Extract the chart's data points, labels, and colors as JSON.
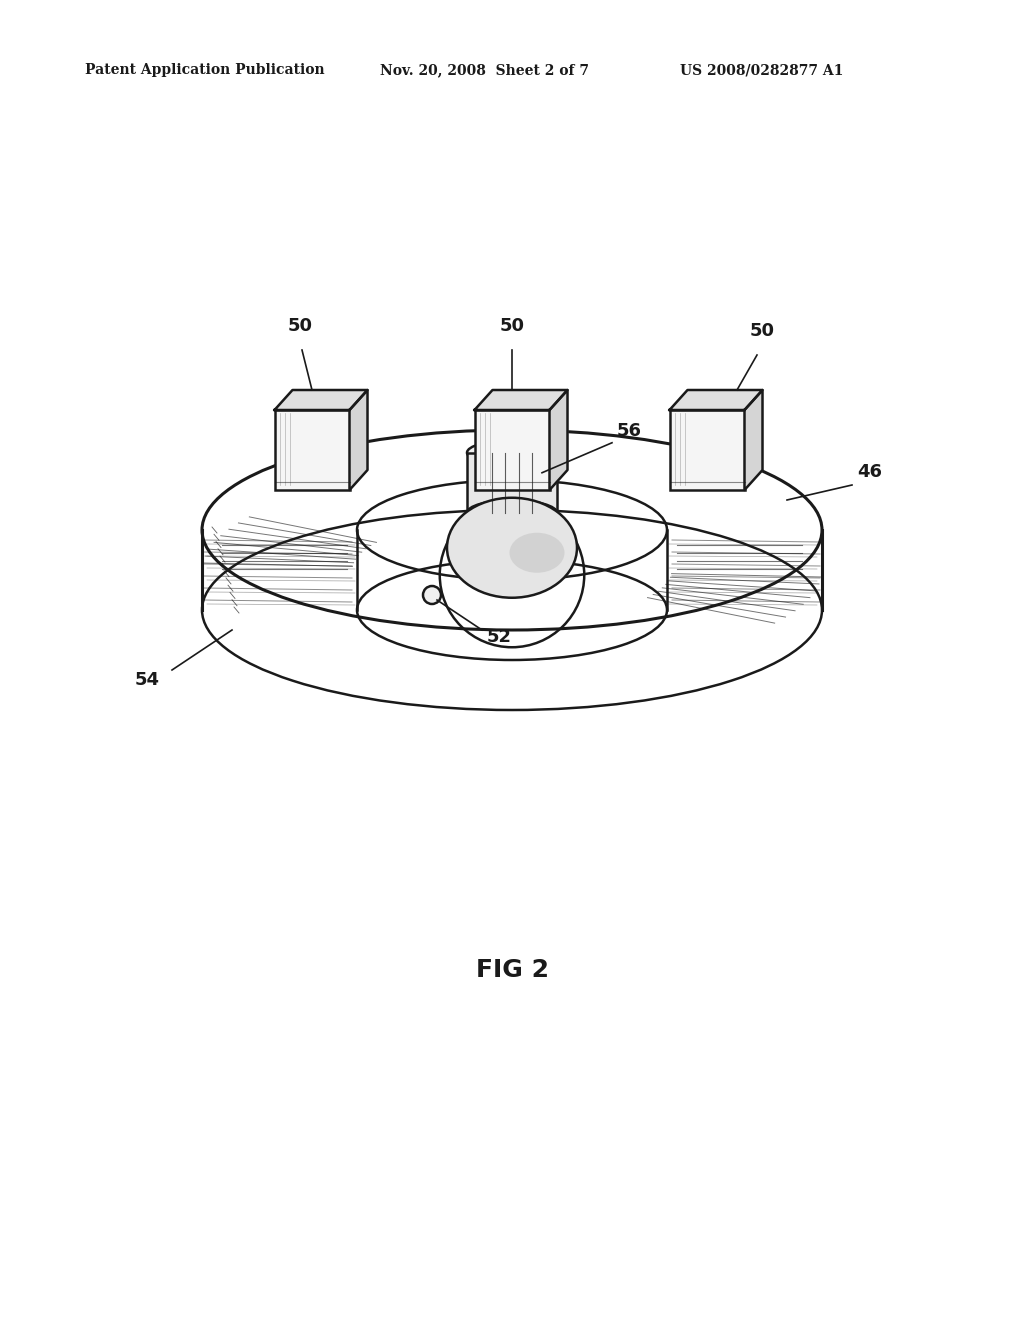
{
  "header_left": "Patent Application Publication",
  "header_mid": "Nov. 20, 2008  Sheet 2 of 7",
  "header_right": "US 2008/0282877 A1",
  "caption": "FIG 2",
  "bg_color": "#ffffff",
  "line_color": "#1a1a1a",
  "label_46": "46",
  "label_50": "50",
  "label_52": "52",
  "label_54": "54",
  "label_56": "56"
}
